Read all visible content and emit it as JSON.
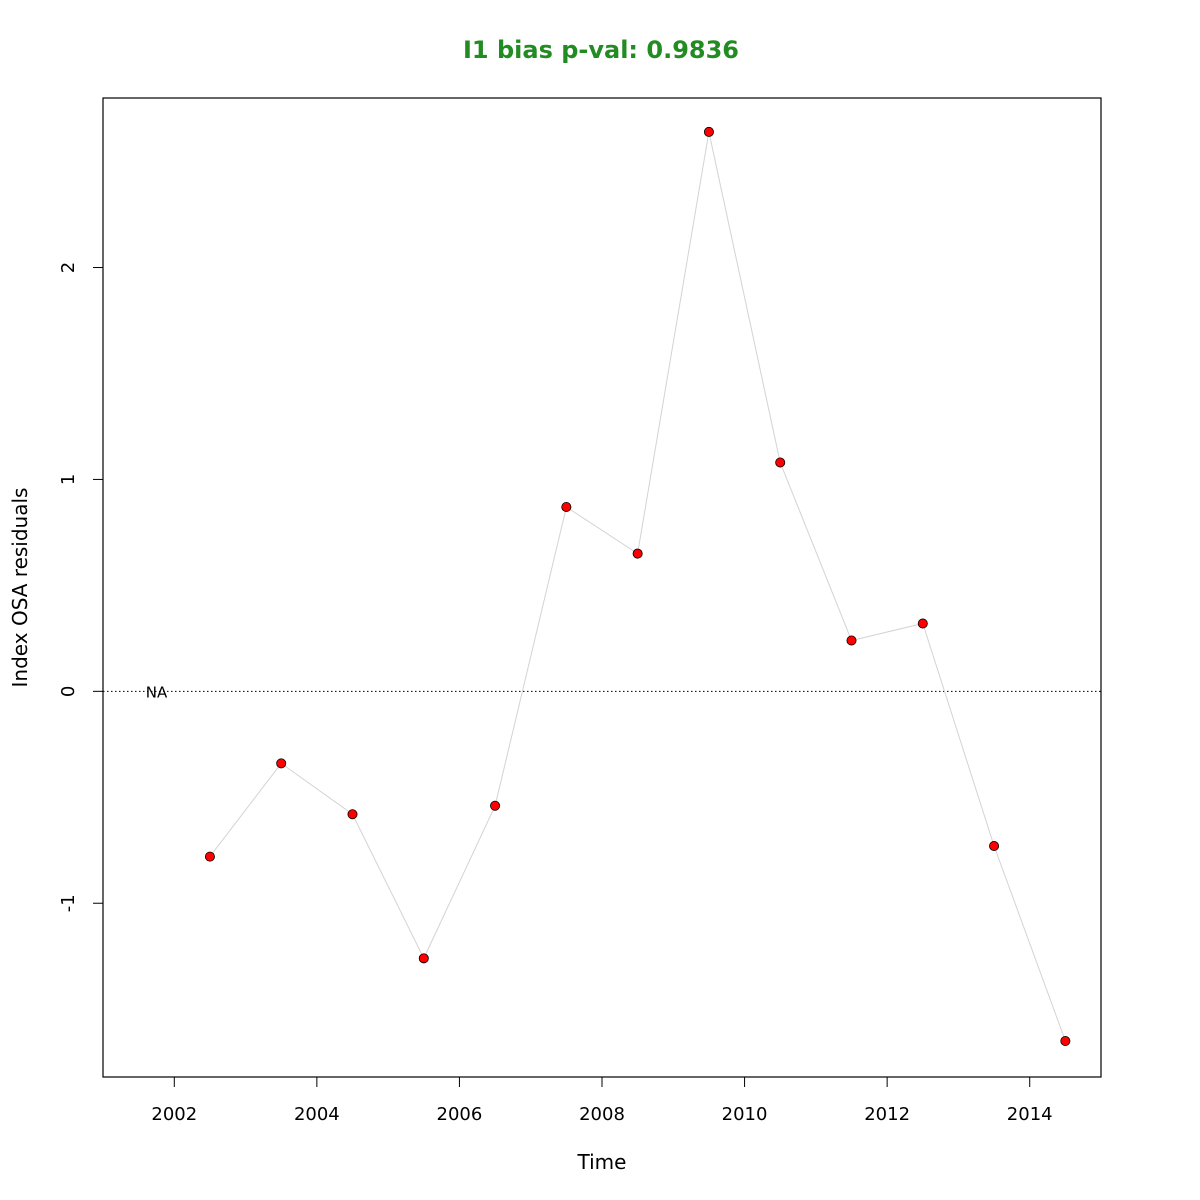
{
  "chart_data": {
    "type": "line",
    "title": "I1 bias p-val: 0.9836",
    "title_color": "#228b22",
    "xlabel": "Time",
    "ylabel": "Index OSA residuals",
    "xlim": [
      2001,
      2015
    ],
    "ylim": [
      -1.82,
      2.8
    ],
    "x_ticks": [
      2002,
      2004,
      2006,
      2008,
      2010,
      2012,
      2014
    ],
    "y_ticks": [
      -1,
      0,
      1,
      2
    ],
    "reference_line": {
      "y": 0,
      "style": "dotted"
    },
    "annotation": {
      "text": "NA",
      "x": 2001.75,
      "y": 0
    },
    "series": [
      {
        "point_color": "#ff0000",
        "line_color": "#d3d3d3",
        "points": [
          {
            "x": 2002.5,
            "y": -0.78
          },
          {
            "x": 2003.5,
            "y": -0.34
          },
          {
            "x": 2004.5,
            "y": -0.58
          },
          {
            "x": 2005.5,
            "y": -1.26
          },
          {
            "x": 2006.5,
            "y": -0.54
          },
          {
            "x": 2007.5,
            "y": 0.87
          },
          {
            "x": 2008.5,
            "y": 0.65
          },
          {
            "x": 2009.5,
            "y": 2.64
          },
          {
            "x": 2010.5,
            "y": 1.08
          },
          {
            "x": 2011.5,
            "y": 0.24
          },
          {
            "x": 2012.5,
            "y": 0.32
          },
          {
            "x": 2013.5,
            "y": -0.73
          },
          {
            "x": 2014.5,
            "y": -1.65
          }
        ]
      }
    ],
    "grid": false
  }
}
